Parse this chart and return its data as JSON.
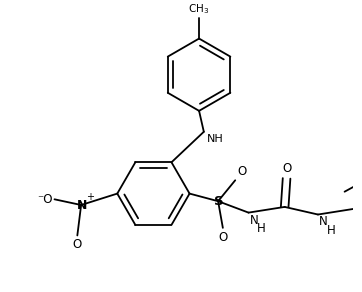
{
  "bg_color": "#ffffff",
  "line_color": "#000000",
  "lw": 1.3,
  "figsize": [
    3.62,
    2.92
  ],
  "dpi": 100,
  "xlim": [
    0,
    362
  ],
  "ylim": [
    0,
    292
  ]
}
